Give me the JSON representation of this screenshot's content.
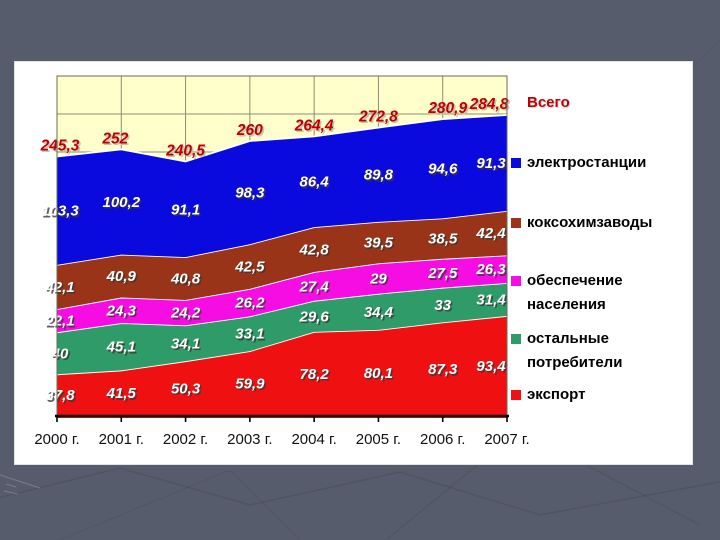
{
  "slide": {
    "background_color": "#575c6c",
    "panel_color": "#ffffff"
  },
  "chart_data": {
    "type": "area",
    "stacked": true,
    "title": "",
    "xlabel": "",
    "ylabel": "",
    "grid": true,
    "legend_position": "right",
    "plot_bg": "#ffffcc",
    "categories": [
      "2000 г.",
      "2001 г.",
      "2002 г.",
      "2003 г.",
      "2004 г.",
      "2005 г.",
      "2006 г.",
      "2007 г."
    ],
    "series": [
      {
        "name": "экспорт",
        "color": "#ef1111",
        "values": [
          37.8,
          41.5,
          50.3,
          59.9,
          78.2,
          80.1,
          87.3,
          93.4
        ],
        "labels": [
          "37,8",
          "41,5",
          "50,3",
          "59,9",
          "78,2",
          "80,1",
          "87,3",
          "93,4"
        ]
      },
      {
        "name": "остальные потребители",
        "color": "#2e9b69",
        "values": [
          40,
          45.1,
          34.1,
          33.1,
          29.6,
          34.4,
          33,
          31.4
        ],
        "labels": [
          "40",
          "45,1",
          "34,1",
          "33,1",
          "29,6",
          "34,4",
          "33",
          "31,4"
        ]
      },
      {
        "name": "обеспечение населения",
        "color": "#f60de4",
        "values": [
          22.1,
          24.3,
          24.2,
          26.2,
          27.4,
          29,
          27.5,
          26.3
        ],
        "labels": [
          "22,1",
          "24,3",
          "24,2",
          "26,2",
          "27,4",
          "29",
          "27,5",
          "26,3"
        ]
      },
      {
        "name": "коксохимзаводы",
        "color": "#9a3418",
        "values": [
          42.1,
          40.9,
          40.8,
          42.5,
          42.8,
          39.5,
          38.5,
          42.4
        ],
        "labels": [
          "42,1",
          "40,9",
          "40,8",
          "42,5",
          "42,8",
          "39,5",
          "38,5",
          "42,4"
        ]
      },
      {
        "name": "электростанции",
        "color": "#0a0adf",
        "values": [
          103.3,
          100.2,
          91.1,
          98.3,
          86.4,
          89.8,
          94.6,
          91.3
        ],
        "labels": [
          "103,3",
          "100,2",
          "91,1",
          "98,3",
          "86,4",
          "89,8",
          "94,6",
          "91,3"
        ]
      }
    ],
    "totals": {
      "name": "Всего",
      "color": "#c00000",
      "values": [
        245.3,
        252,
        240.5,
        260,
        264.4,
        272.8,
        280.9,
        284.8
      ],
      "labels": [
        "245,3",
        "252",
        "240,5",
        "260",
        "264,4",
        "272,8",
        "280,9",
        "284,8"
      ]
    },
    "axis": {
      "y_labels_visible": false,
      "x_tick_color": "#000000"
    }
  },
  "legend": {
    "title": {
      "label": "Всего",
      "color": "#c00000"
    },
    "items": [
      {
        "lines": [
          "электростанции"
        ],
        "color": "#0a0adf"
      },
      {
        "lines": [
          "коксохимзаводы"
        ],
        "color": "#9a3418"
      },
      {
        "lines": [
          "обеспечение",
          "населения"
        ],
        "color": "#f60de4"
      },
      {
        "lines": [
          "остальные",
          "потребители"
        ],
        "color": "#2e9b69"
      },
      {
        "lines": [
          "экспорт"
        ],
        "color": "#ef1111"
      }
    ]
  }
}
